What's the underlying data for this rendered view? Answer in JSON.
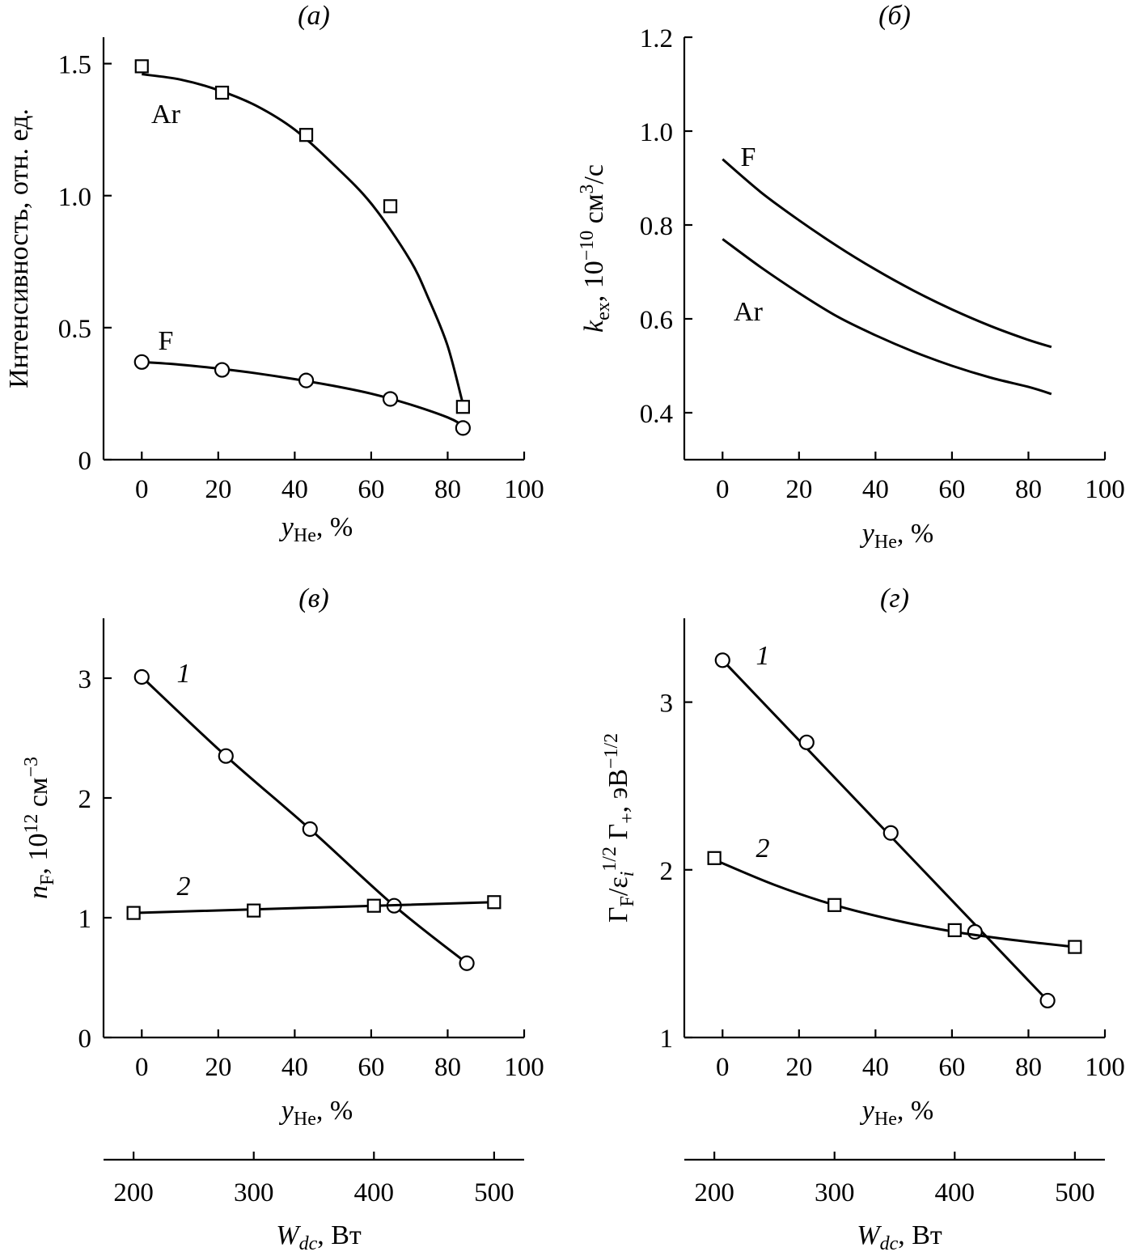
{
  "chart_data": [
    {
      "id": "a",
      "type": "scatter",
      "title": "(а)",
      "xlabel": "y",
      "xlabel_sub": "He",
      "xlabel_unit": ", %",
      "ylabel": "Интенсивность, отн. ед.",
      "xlim": [
        -10,
        100
      ],
      "ylim": [
        0,
        1.6
      ],
      "xticks": [
        0,
        20,
        40,
        60,
        80,
        100
      ],
      "xtick_labels": [
        "0",
        "20",
        "40",
        "60",
        "80",
        "100"
      ],
      "yticks": [
        0,
        0.5,
        1.0,
        1.5
      ],
      "ytick_labels": [
        "0",
        "0.5",
        "1.0",
        "1.5"
      ],
      "series": [
        {
          "name": "Ar",
          "marker": "square",
          "x": [
            0,
            21,
            43,
            65,
            84
          ],
          "y": [
            1.49,
            1.39,
            1.23,
            0.96,
            0.2
          ],
          "fit_x": [
            0,
            10,
            20,
            30,
            40,
            50,
            60,
            70,
            75,
            80,
            84
          ],
          "fit_y": [
            1.46,
            1.44,
            1.4,
            1.34,
            1.25,
            1.12,
            0.97,
            0.76,
            0.61,
            0.43,
            0.21
          ]
        },
        {
          "name": "F",
          "marker": "circle",
          "x": [
            0,
            21,
            43,
            65,
            84
          ],
          "y": [
            0.37,
            0.34,
            0.3,
            0.23,
            0.12
          ],
          "fit_x": [
            0,
            10,
            20,
            30,
            40,
            50,
            60,
            70,
            80,
            84
          ],
          "fit_y": [
            0.37,
            0.36,
            0.345,
            0.327,
            0.305,
            0.28,
            0.25,
            0.21,
            0.16,
            0.13
          ]
        }
      ]
    },
    {
      "id": "b",
      "type": "line",
      "title": "(б)",
      "xlabel": "y",
      "xlabel_sub": "He",
      "xlabel_unit": ", %",
      "ylabel_parts": [
        "k",
        "ex",
        ", 10",
        "−10",
        " см",
        "3",
        "/с"
      ],
      "xlim": [
        -10,
        100
      ],
      "ylim": [
        0.3,
        1.2
      ],
      "xticks": [
        0,
        20,
        40,
        60,
        80,
        100
      ],
      "xtick_labels": [
        "0",
        "20",
        "40",
        "60",
        "80",
        "100"
      ],
      "yticks": [
        0.4,
        0.6,
        0.8,
        1.0,
        1.2
      ],
      "ytick_labels": [
        "0.4",
        "0.6",
        "0.8",
        "1.0",
        "1.2"
      ],
      "series": [
        {
          "name": "F",
          "x": [
            0,
            10,
            20,
            30,
            40,
            50,
            60,
            70,
            80,
            86
          ],
          "y": [
            0.94,
            0.87,
            0.81,
            0.755,
            0.705,
            0.66,
            0.62,
            0.585,
            0.555,
            0.54
          ]
        },
        {
          "name": "Ar",
          "x": [
            0,
            10,
            20,
            30,
            40,
            50,
            60,
            70,
            80,
            86
          ],
          "y": [
            0.77,
            0.71,
            0.655,
            0.605,
            0.565,
            0.53,
            0.5,
            0.475,
            0.455,
            0.44
          ]
        }
      ]
    },
    {
      "id": "c",
      "type": "scatter",
      "title": "(в)",
      "xlabel": "y",
      "xlabel_sub": "He",
      "xlabel_unit": ", %",
      "x2label": "W",
      "x2label_sub": "dc",
      "x2label_unit": ", Вт",
      "ylabel_parts": [
        "n",
        "F",
        ", 10",
        "12",
        " см",
        "−3"
      ],
      "xlim": [
        -10,
        100
      ],
      "ylim": [
        0,
        3.5
      ],
      "xticks": [
        0,
        20,
        40,
        60,
        80,
        100
      ],
      "xtick_labels": [
        "0",
        "20",
        "40",
        "60",
        "80",
        "100"
      ],
      "x2lim": [
        175,
        525
      ],
      "x2ticks": [
        200,
        300,
        400,
        500
      ],
      "x2tick_labels": [
        "200",
        "300",
        "400",
        "500"
      ],
      "yticks": [
        0,
        1,
        2,
        3
      ],
      "ytick_labels": [
        "0",
        "1",
        "2",
        "3"
      ],
      "series": [
        {
          "name": "1",
          "marker": "circle",
          "axis": "yHe",
          "x": [
            0,
            22,
            44,
            66,
            85
          ],
          "y": [
            3.01,
            2.35,
            1.74,
            1.1,
            0.62
          ],
          "fit_x": [
            0,
            22,
            44,
            66,
            85
          ],
          "fit_y": [
            3.01,
            2.35,
            1.74,
            1.1,
            0.62
          ]
        },
        {
          "name": "2",
          "marker": "square",
          "axis": "Wdc",
          "x": [
            200,
            300,
            400,
            500
          ],
          "y": [
            1.04,
            1.06,
            1.1,
            1.13
          ],
          "fit_x": [
            200,
            500
          ],
          "fit_y": [
            1.04,
            1.13
          ]
        }
      ]
    },
    {
      "id": "d",
      "type": "scatter",
      "title": "(г)",
      "xlabel": "y",
      "xlabel_sub": "He",
      "xlabel_unit": ", %",
      "x2label": "W",
      "x2label_sub": "dc",
      "x2label_unit": ", Вт",
      "ylabel_parts": [
        "Γ",
        "F",
        "/ε",
        "i",
        "1/2",
        " Γ",
        "+",
        ", эВ",
        "−1/2"
      ],
      "xlim": [
        -10,
        100
      ],
      "ylim": [
        1,
        3.5
      ],
      "xticks": [
        0,
        20,
        40,
        60,
        80,
        100
      ],
      "xtick_labels": [
        "0",
        "20",
        "40",
        "60",
        "80",
        "100"
      ],
      "x2lim": [
        175,
        525
      ],
      "x2ticks": [
        200,
        300,
        400,
        500
      ],
      "x2tick_labels": [
        "200",
        "300",
        "400",
        "500"
      ],
      "yticks": [
        1,
        2,
        3
      ],
      "ytick_labels": [
        "1",
        "2",
        "3"
      ],
      "series": [
        {
          "name": "1",
          "marker": "circle",
          "axis": "yHe",
          "x": [
            0,
            22,
            44,
            66,
            85
          ],
          "y": [
            3.25,
            2.76,
            2.22,
            1.63,
            1.22
          ],
          "fit_x": [
            0,
            85
          ],
          "fit_y": [
            3.25,
            1.22
          ]
        },
        {
          "name": "2",
          "marker": "square",
          "axis": "Wdc",
          "x": [
            200,
            300,
            400,
            500
          ],
          "y": [
            2.07,
            1.79,
            1.64,
            1.54
          ],
          "fit_x": [
            200,
            250,
            300,
            350,
            400,
            450,
            500
          ],
          "fit_y": [
            2.06,
            1.91,
            1.79,
            1.7,
            1.63,
            1.58,
            1.54
          ]
        }
      ]
    }
  ]
}
